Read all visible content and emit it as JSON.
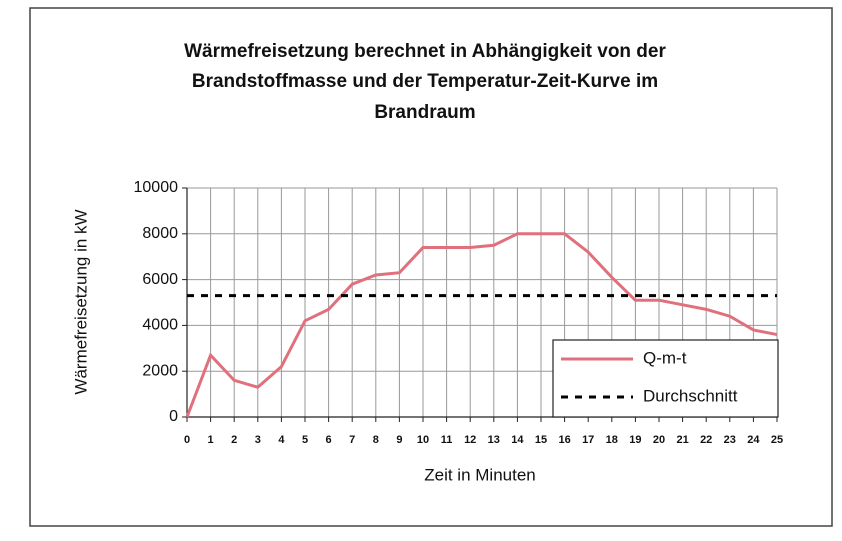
{
  "chart_data": {
    "type": "line",
    "title": [
      "Wärmefreisetzung berechnet  in Abhängigkeit von der",
      "Brandstoffmasse und der Temperatur-Zeit-Kurve im",
      "Brandraum"
    ],
    "xlabel": "Zeit in Minuten",
    "ylabel": "Wärmefreisetzung in kW",
    "x": [
      0,
      1,
      2,
      3,
      4,
      5,
      6,
      7,
      8,
      9,
      10,
      11,
      12,
      13,
      14,
      15,
      16,
      17,
      18,
      19,
      20,
      21,
      22,
      23,
      24,
      25
    ],
    "xlim": [
      0,
      25
    ],
    "ylim": [
      0,
      10000
    ],
    "yticks": [
      0,
      2000,
      4000,
      6000,
      8000,
      10000
    ],
    "grid": true,
    "legend": "lower right",
    "series": [
      {
        "name": "Q-m-t",
        "color": "#e0707c",
        "dash": "solid",
        "values": [
          0,
          2700,
          1600,
          1300,
          2200,
          4200,
          4700,
          5800,
          6200,
          6300,
          7400,
          7400,
          7400,
          7500,
          8000,
          8000,
          8000,
          7200,
          6100,
          5100,
          5100,
          4900,
          4700,
          4400,
          3800,
          3600
        ]
      },
      {
        "name": "Durchschnitt",
        "color": "#000000",
        "dash": "dashed",
        "values": [
          5300,
          5300,
          5300,
          5300,
          5300,
          5300,
          5300,
          5300,
          5300,
          5300,
          5300,
          5300,
          5300,
          5300,
          5300,
          5300,
          5300,
          5300,
          5300,
          5300,
          5300,
          5300,
          5300,
          5300,
          5300,
          5300
        ]
      }
    ]
  }
}
